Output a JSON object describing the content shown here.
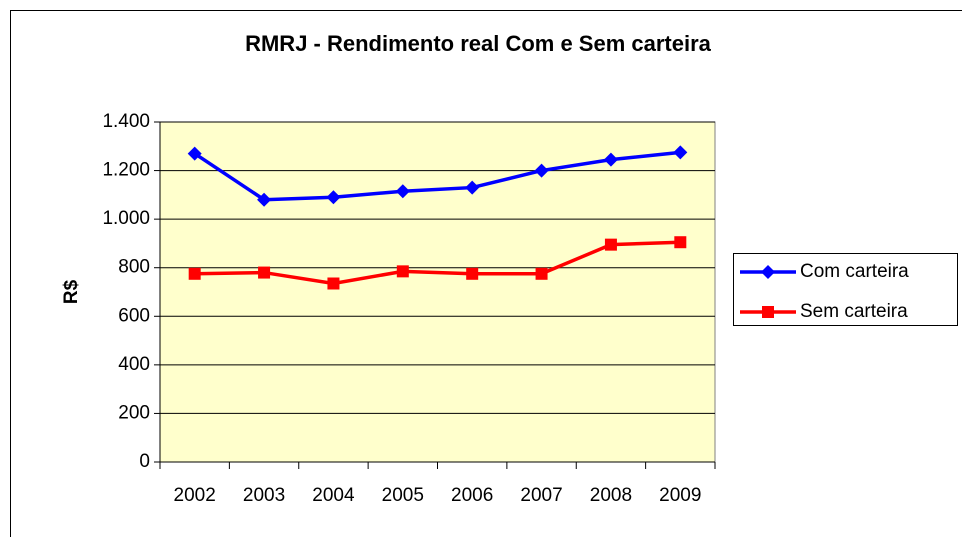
{
  "chart_data": {
    "type": "line",
    "title": "RMRJ - Rendimento real Com e Sem carteira",
    "y_label": "R$",
    "categories": [
      "2002",
      "2003",
      "2004",
      "2005",
      "2006",
      "2007",
      "2008",
      "2009"
    ],
    "series": [
      {
        "name": "Com carteira",
        "color": "#0000ff",
        "marker": "diamond",
        "values": [
          1270,
          1080,
          1090,
          1115,
          1130,
          1200,
          1245,
          1275
        ]
      },
      {
        "name": "Sem carteira",
        "color": "#ff0000",
        "marker": "square",
        "values": [
          775,
          780,
          735,
          785,
          775,
          775,
          895,
          905
        ]
      }
    ],
    "ylim": [
      0,
      1400
    ],
    "yticks": [
      0,
      200,
      400,
      600,
      800,
      {
        "value": 1000,
        "label": "1.000"
      },
      {
        "value": 1200,
        "label": "1.200"
      },
      {
        "value": 1400,
        "label": "1.400"
      }
    ],
    "grid": true,
    "legend": "right",
    "plot_background": "#ffffcc"
  }
}
